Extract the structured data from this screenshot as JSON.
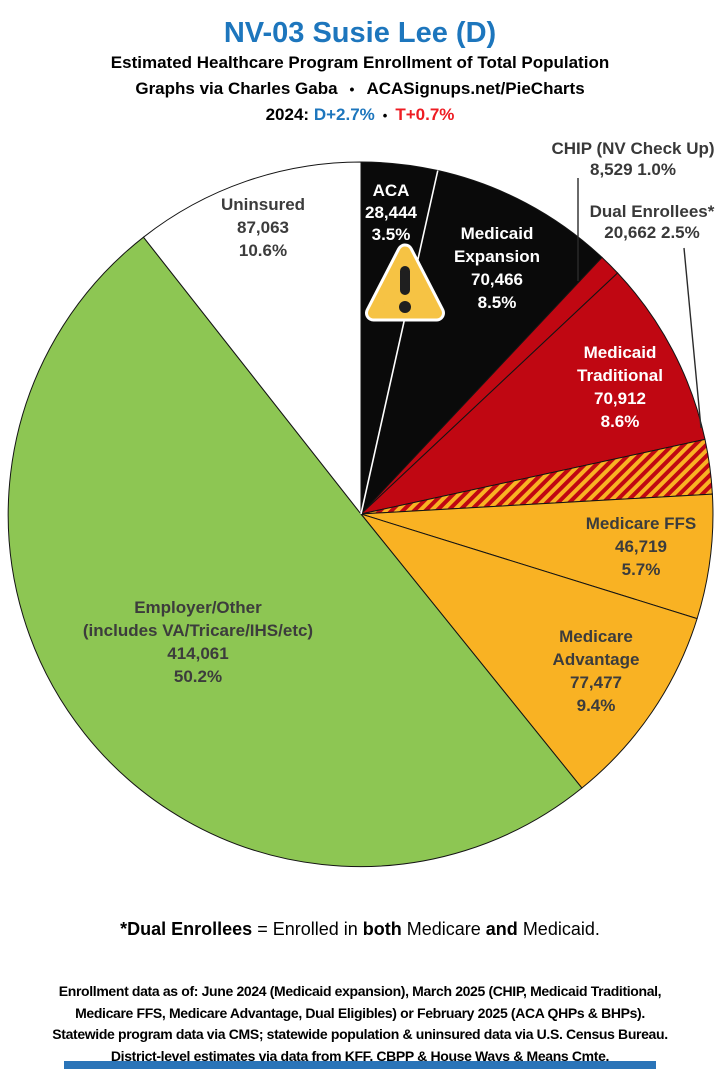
{
  "header": {
    "title": "NV-03 Susie Lee (D)",
    "subtitle": "Estimated Healthcare Program Enrollment of Total Population",
    "credit_left": "Graphs via Charles Gaba",
    "credit_bullet": "•",
    "credit_right": "ACASignups.net/PieCharts",
    "partisan_prefix": "2024:",
    "partisan_dem": "D+2.7%",
    "partisan_bullet": "•",
    "partisan_rep": "T+0.7%"
  },
  "chart_data": {
    "type": "pie",
    "title": "NV-03 Susie Lee (D) — Estimated Healthcare Program Enrollment of Total Population",
    "start": "12 o'clock, clockwise",
    "legend_position": "labels-on-slices",
    "total_pct": 100.0,
    "slices": [
      {
        "label": "ACA",
        "enrollment": 28444,
        "pct": 3.5,
        "lines": [
          "ACA",
          "28,444",
          "3.5%"
        ],
        "color": "#0a0a0a",
        "label_color": "#ffffff"
      },
      {
        "label": "Medicaid Expansion",
        "enrollment": 70466,
        "pct": 8.5,
        "lines": [
          "Medicaid",
          "Expansion",
          "70,466",
          "8.5%"
        ],
        "color": "#0a0a0a",
        "label_color": "#ffffff"
      },
      {
        "label": "CHIP (NV Check Up)",
        "enrollment": 8529,
        "pct": 1.0,
        "lines": [
          "CHIP (NV Check Up)",
          "8,529 1.0%"
        ],
        "color": "#c00712",
        "label_color": "#393939"
      },
      {
        "label": "Medicaid Traditional",
        "enrollment": 70912,
        "pct": 8.6,
        "lines": [
          "Medicaid",
          "Traditional",
          "70,912",
          "8.6%"
        ],
        "color": "#c00712",
        "label_color": "#ffffff"
      },
      {
        "label": "Dual Enrollees*",
        "enrollment": 20662,
        "pct": 2.5,
        "lines": [
          "Dual Enrollees*",
          "20,662 2.5%"
        ],
        "color": "hatch",
        "label_color": "#393939"
      },
      {
        "label": "Medicare FFS",
        "enrollment": 46719,
        "pct": 5.7,
        "lines": [
          "Medicare FFS",
          "46,719",
          "5.7%"
        ],
        "color": "#f9b223",
        "label_color": "#3c3c3c"
      },
      {
        "label": "Medicare Advantage",
        "enrollment": 77477,
        "pct": 9.4,
        "lines": [
          "Medicare",
          "Advantage",
          "77,477",
          "9.4%"
        ],
        "color": "#f9b223",
        "label_color": "#3c3c3c"
      },
      {
        "label": "Employer/Other",
        "enrollment": 414061,
        "pct": 50.2,
        "lines": [
          "Employer/Other",
          "(includes VA/Tricare/IHS/etc)",
          "414,061",
          "50.2%"
        ],
        "color": "#8dc653",
        "label_color": "#3c3c3c"
      },
      {
        "label": "Uninsured",
        "enrollment": 87063,
        "pct": 10.6,
        "lines": [
          "Uninsured",
          "87,063",
          "10.6%"
        ],
        "color": "#ffffff",
        "label_color": "#3c3c3c"
      }
    ],
    "hatch_colors": [
      "#c00712",
      "#f9b223"
    ]
  },
  "footnote": {
    "p1": "*Dual Enrollees",
    "p2": " = Enrolled in ",
    "p3": "both",
    "p4": " Medicare ",
    "p5": "and",
    "p6": " Medicaid."
  },
  "footer": {
    "lines": [
      "Enrollment data as of: June 2024 (Medicaid expansion), March 2025 (CHIP, Medicaid Traditional,",
      "Medicare FFS, Medicare Advantage, Dual Eligibles) or February 2025 (ACA QHPs & BHPs).",
      "Statewide program data via CMS; statewide population & uninsured data via U.S. Census Bureau.",
      "District-level estimates via data from KFF, CBPP & House Ways & Means Cmte."
    ]
  },
  "colors": {
    "title_blue": "#1d76bd",
    "dem_blue": "#1d76bd",
    "rep_red": "#ee1c23",
    "warning_fill": "#f6c344",
    "bottom_bar": "#2a74b8"
  }
}
